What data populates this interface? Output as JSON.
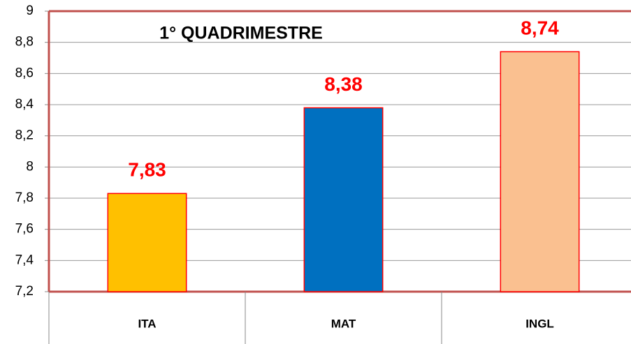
{
  "chart_data": {
    "type": "bar",
    "title": "1° QUADRIMESTRE",
    "categories": [
      "ITA",
      "MAT",
      "INGL"
    ],
    "values": [
      7.83,
      8.38,
      8.74
    ],
    "value_labels": [
      "7,83",
      "8,38",
      "8,74"
    ],
    "colors": [
      "#ffc000",
      "#0070c0",
      "#fac090"
    ],
    "ylim": [
      7.2,
      9
    ],
    "yticks": [
      {
        "value": 7.2,
        "label": "7,2"
      },
      {
        "value": 7.4,
        "label": "7,4"
      },
      {
        "value": 7.6,
        "label": "7,6"
      },
      {
        "value": 7.8,
        "label": "7,8"
      },
      8,
      {
        "value": 8.2,
        "label": "8,2"
      },
      {
        "value": 8.4,
        "label": "8,4"
      },
      {
        "value": 8.6,
        "label": "8,6"
      },
      {
        "value": 8.8,
        "label": "8,8"
      },
      9
    ],
    "grid": true
  }
}
